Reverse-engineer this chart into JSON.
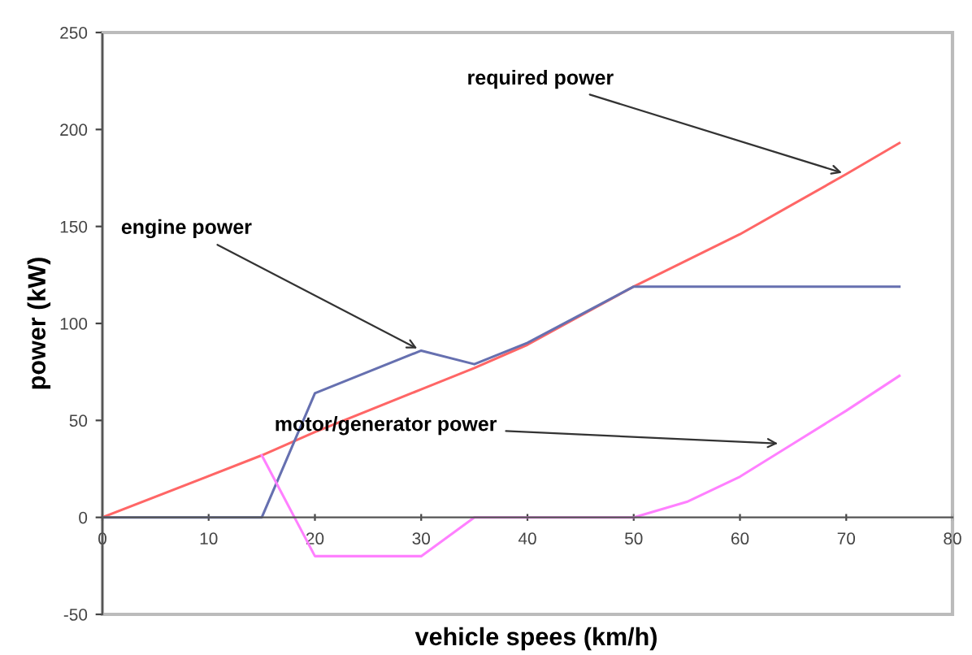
{
  "chart_data": {
    "type": "line",
    "xlabel": "vehicle spees (km/h)",
    "ylabel": "power (kW)",
    "xlim": [
      0,
      80
    ],
    "xticks": [
      0,
      10,
      20,
      30,
      40,
      50,
      60,
      70,
      80
    ],
    "ylim": [
      -50,
      250
    ],
    "yticks": [
      -50,
      0,
      50,
      100,
      150,
      200,
      250
    ],
    "grid": false,
    "marker": "none",
    "line_style": "solid",
    "series": [
      {
        "color": "#ff6666",
        "x": [
          0,
          15,
          20,
          30,
          35,
          40,
          50,
          60,
          70,
          75
        ],
        "values": [
          0,
          32,
          44,
          66,
          77,
          89,
          119,
          146,
          177,
          193
        ]
      },
      {
        "color": "#6670b0",
        "x": [
          0,
          15,
          20,
          30,
          35,
          40,
          50,
          75
        ],
        "values": [
          0,
          0,
          64,
          86,
          79,
          90,
          119,
          119
        ]
      },
      {
        "color": "#ff80ff",
        "x": [
          15,
          20,
          30,
          35,
          50,
          55,
          60,
          65,
          70,
          75
        ],
        "values": [
          32,
          -20,
          -20,
          0,
          0,
          8,
          21,
          38,
          55,
          73
        ]
      }
    ],
    "annotations": [
      {
        "text": "required power",
        "x": 70,
        "y": 177
      },
      {
        "text": "engine power",
        "x": 30,
        "y": 86
      },
      {
        "text": "motor/generator power",
        "x": 64,
        "y": 38
      }
    ]
  }
}
